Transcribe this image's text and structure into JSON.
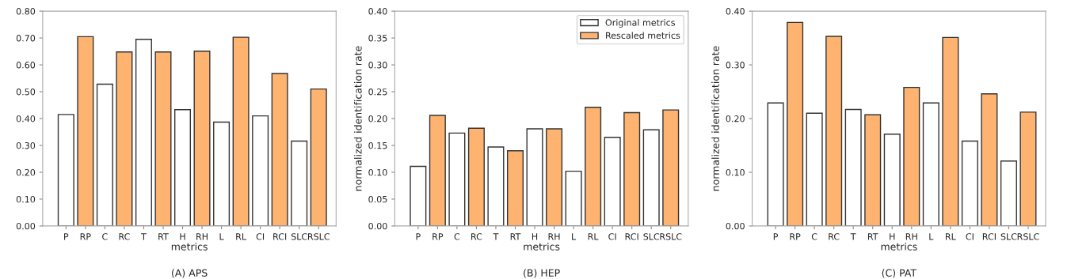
{
  "chart_data": [
    {
      "type": "bar",
      "title": "(A) APS",
      "xlabel": "metrics",
      "categories": [
        "P",
        "RP",
        "C",
        "RC",
        "T",
        "RT",
        "H",
        "RH",
        "L",
        "RL",
        "CI",
        "RCI",
        "SLC",
        "RSLC"
      ],
      "series": [
        {
          "color": "#ffffff",
          "values": [
            0.415,
            null,
            0.528,
            null,
            0.695,
            null,
            0.433,
            null,
            0.387,
            null,
            0.41,
            null,
            0.316,
            null
          ]
        },
        {
          "color": "#feb470",
          "values": [
            null,
            0.705,
            null,
            0.648,
            null,
            0.648,
            null,
            0.651,
            null,
            0.703,
            null,
            0.568,
            null,
            0.51
          ]
        }
      ],
      "ylim": [
        0,
        0.8
      ],
      "yticks": [
        {
          "value": 0,
          "label": "0.00"
        },
        {
          "value": 0.1,
          "label": "0.10"
        },
        {
          "value": 0.2,
          "label": "0.20"
        },
        {
          "value": 0.3,
          "label": "0.30"
        },
        {
          "value": 0.4,
          "label": "0.40"
        },
        {
          "value": 0.5,
          "label": "0.50"
        },
        {
          "value": 0.6,
          "label": "0.60"
        },
        {
          "value": 0.7,
          "label": "0.70"
        },
        {
          "value": 0.8,
          "label": "0.80"
        }
      ]
    },
    {
      "type": "bar",
      "title": "(B) HEP",
      "xlabel": "metrics",
      "ylabel": "normalized identification rate",
      "legend": "top right",
      "categories": [
        "P",
        "RP",
        "C",
        "RC",
        "T",
        "RT",
        "H",
        "RH",
        "L",
        "RL",
        "CI",
        "RCI",
        "SLC",
        "RSLC"
      ],
      "series": [
        {
          "name": "Original metrics",
          "color": "#ffffff",
          "values": [
            0.111,
            null,
            0.173,
            null,
            0.147,
            null,
            0.181,
            null,
            0.102,
            null,
            0.165,
            null,
            0.179,
            null
          ]
        },
        {
          "name": "Rescaled metrics",
          "color": "#feb470",
          "values": [
            null,
            0.206,
            null,
            0.182,
            null,
            0.14,
            null,
            0.181,
            null,
            0.221,
            null,
            0.211,
            null,
            0.216
          ]
        }
      ],
      "ylim": [
        0,
        0.4
      ],
      "yticks": [
        {
          "value": 0,
          "label": "0.00"
        },
        {
          "value": 0.05,
          "label": "0.05"
        },
        {
          "value": 0.1,
          "label": "0.10"
        },
        {
          "value": 0.15,
          "label": "0.15"
        },
        {
          "value": 0.2,
          "label": "0.20"
        },
        {
          "value": 0.25,
          "label": "0.25"
        },
        {
          "value": 0.3,
          "label": "0.30"
        },
        {
          "value": 0.35,
          "label": "0.35"
        },
        {
          "value": 0.4,
          "label": "0.40"
        }
      ]
    },
    {
      "type": "bar",
      "title": "(C) PAT",
      "xlabel": "metrics",
      "ylabel": "normalized identification rate",
      "categories": [
        "P",
        "RP",
        "C",
        "RC",
        "T",
        "RT",
        "H",
        "RH",
        "L",
        "RL",
        "CI",
        "RCI",
        "SLC",
        "RSLC"
      ],
      "series": [
        {
          "color": "#ffffff",
          "values": [
            0.229,
            null,
            0.21,
            null,
            0.217,
            null,
            0.171,
            null,
            0.229,
            null,
            0.158,
            null,
            0.121,
            null
          ]
        },
        {
          "color": "#feb470",
          "values": [
            null,
            0.379,
            null,
            0.353,
            null,
            0.207,
            null,
            0.258,
            null,
            0.351,
            null,
            0.246,
            null,
            0.212
          ]
        }
      ],
      "ylim": [
        0,
        0.4
      ],
      "yticks": [
        {
          "value": 0,
          "label": "0.00"
        },
        {
          "value": 0.1,
          "label": "0.10"
        },
        {
          "value": 0.2,
          "label": "0.20"
        },
        {
          "value": 0.3,
          "label": "0.30"
        },
        {
          "value": 0.4,
          "label": "0.40"
        }
      ]
    }
  ]
}
